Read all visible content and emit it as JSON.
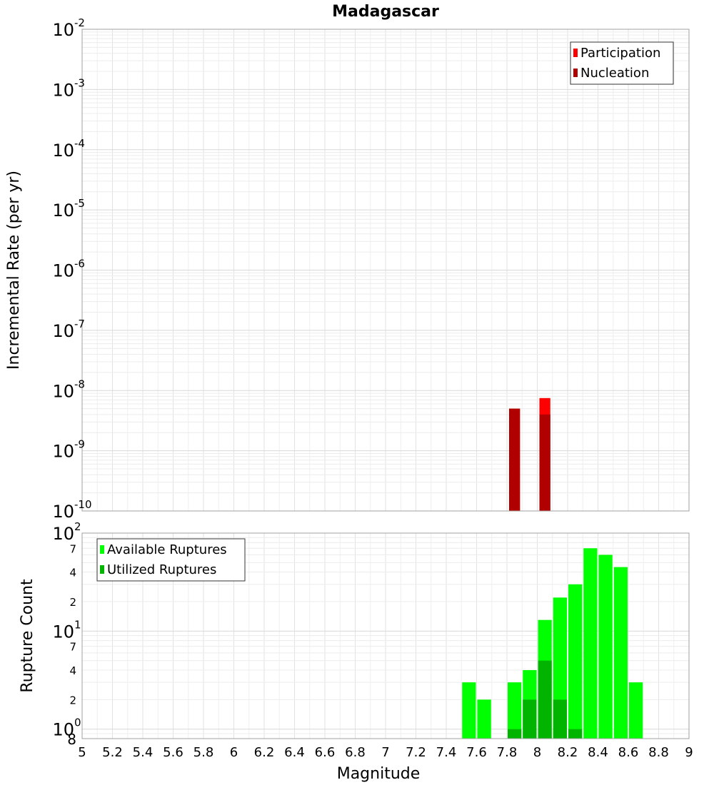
{
  "chart_data": [
    {
      "type": "bar",
      "title": "Madagascar",
      "xlabel": "",
      "ylabel": "Incremental Rate (per yr)",
      "xlim": [
        5,
        9
      ],
      "ylim": [
        1e-10,
        0.01
      ],
      "yscale": "log",
      "y_tick_exponents": [
        "-10",
        "-9",
        "-8",
        "-7",
        "-6",
        "-5",
        "-4",
        "-3",
        "-2"
      ],
      "bar_width": 0.1,
      "grid": true,
      "legend_position": "top-right",
      "series": [
        {
          "name": "Participation",
          "color": "#ff0000",
          "x": [
            7.85,
            8.05
          ],
          "values": [
            5e-09,
            7.5e-09
          ]
        },
        {
          "name": "Nucleation",
          "color": "#b00000",
          "x": [
            7.85,
            8.05
          ],
          "values": [
            5e-09,
            4e-09
          ]
        }
      ]
    },
    {
      "type": "bar",
      "title": "",
      "xlabel": "Magnitude",
      "ylabel": "Rupture Count",
      "xlim": [
        5,
        9
      ],
      "ylim": [
        0.8,
        100
      ],
      "yscale": "log",
      "x_ticks": [
        "5",
        "5.2",
        "5.4",
        "5.6",
        "5.8",
        "6",
        "6.2",
        "6.4",
        "6.6",
        "6.8",
        "7",
        "7.2",
        "7.4",
        "7.6",
        "7.8",
        "8",
        "8.2",
        "8.4",
        "8.6",
        "8.8",
        "9"
      ],
      "y_major_ticks": [
        {
          "base": "10",
          "exp": "0",
          "value": 1
        },
        {
          "base": "10",
          "exp": "1",
          "value": 10
        },
        {
          "base": "10",
          "exp": "2",
          "value": 100
        }
      ],
      "y_minor_ticks": [
        {
          "label": "8",
          "value": 0.8
        },
        {
          "label": "2",
          "value": 2
        },
        {
          "label": "4",
          "value": 4
        },
        {
          "label": "7",
          "value": 7
        },
        {
          "label": "2",
          "value": 20
        },
        {
          "label": "4",
          "value": 40
        },
        {
          "label": "7",
          "value": 70
        }
      ],
      "bar_width": 0.1,
      "grid": true,
      "legend_position": "top-left",
      "series": [
        {
          "name": "Available Ruptures",
          "color": "#00ff00",
          "x": [
            7.55,
            7.65,
            7.85,
            7.95,
            8.05,
            8.15,
            8.25,
            8.35,
            8.45,
            8.55,
            8.65
          ],
          "values": [
            3,
            2,
            3,
            4,
            13,
            22,
            30,
            70,
            60,
            45,
            3
          ]
        },
        {
          "name": "Utilized Ruptures",
          "color": "#00b400",
          "x": [
            7.85,
            7.95,
            8.05,
            8.15,
            8.25
          ],
          "values": [
            1,
            2,
            5,
            2,
            1
          ]
        }
      ]
    }
  ]
}
